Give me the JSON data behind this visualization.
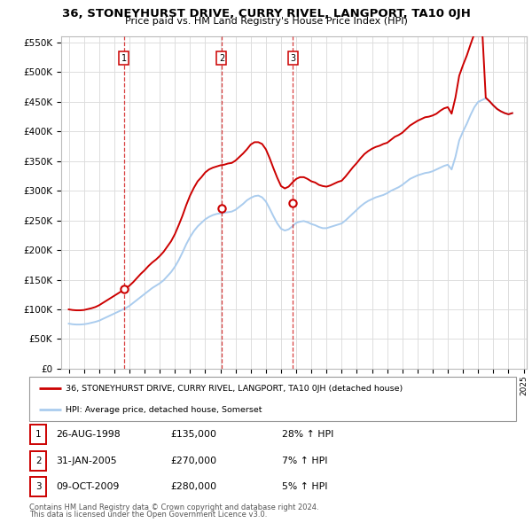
{
  "title": "36, STONEYHURST DRIVE, CURRY RIVEL, LANGPORT, TA10 0JH",
  "subtitle": "Price paid vs. HM Land Registry's House Price Index (HPI)",
  "legend_line1": "36, STONEYHURST DRIVE, CURRY RIVEL, LANGPORT, TA10 0JH (detached house)",
  "legend_line2": "HPI: Average price, detached house, Somerset",
  "footer1": "Contains HM Land Registry data © Crown copyright and database right 2024.",
  "footer2": "This data is licensed under the Open Government Licence v3.0.",
  "transactions": [
    {
      "num": 1,
      "date": "26-AUG-1998",
      "price": 135000,
      "hpi_pct": "28% ↑ HPI",
      "year": 1998.65
    },
    {
      "num": 2,
      "date": "31-JAN-2005",
      "price": 270000,
      "hpi_pct": "7% ↑ HPI",
      "year": 2005.08
    },
    {
      "num": 3,
      "date": "09-OCT-2009",
      "price": 280000,
      "hpi_pct": "5% ↑ HPI",
      "year": 2009.77
    }
  ],
  "hpi_color": "#aaccee",
  "price_color": "#cc0000",
  "ylim": [
    0,
    560000
  ],
  "yticks": [
    0,
    50000,
    100000,
    150000,
    200000,
    250000,
    300000,
    350000,
    400000,
    450000,
    500000,
    550000
  ],
  "background_color": "#ffffff",
  "grid_color": "#dddddd",
  "hpi_data_years": [
    1995.0,
    1995.25,
    1995.5,
    1995.75,
    1996.0,
    1996.25,
    1996.5,
    1996.75,
    1997.0,
    1997.25,
    1997.5,
    1997.75,
    1998.0,
    1998.25,
    1998.5,
    1998.75,
    1999.0,
    1999.25,
    1999.5,
    1999.75,
    2000.0,
    2000.25,
    2000.5,
    2000.75,
    2001.0,
    2001.25,
    2001.5,
    2001.75,
    2002.0,
    2002.25,
    2002.5,
    2002.75,
    2003.0,
    2003.25,
    2003.5,
    2003.75,
    2004.0,
    2004.25,
    2004.5,
    2004.75,
    2005.0,
    2005.25,
    2005.5,
    2005.75,
    2006.0,
    2006.25,
    2006.5,
    2006.75,
    2007.0,
    2007.25,
    2007.5,
    2007.75,
    2008.0,
    2008.25,
    2008.5,
    2008.75,
    2009.0,
    2009.25,
    2009.5,
    2009.75,
    2010.0,
    2010.25,
    2010.5,
    2010.75,
    2011.0,
    2011.25,
    2011.5,
    2011.75,
    2012.0,
    2012.25,
    2012.5,
    2012.75,
    2013.0,
    2013.25,
    2013.5,
    2013.75,
    2014.0,
    2014.25,
    2014.5,
    2014.75,
    2015.0,
    2015.25,
    2015.5,
    2015.75,
    2016.0,
    2016.25,
    2016.5,
    2016.75,
    2017.0,
    2017.25,
    2017.5,
    2017.75,
    2018.0,
    2018.25,
    2018.5,
    2018.75,
    2019.0,
    2019.25,
    2019.5,
    2019.75,
    2020.0,
    2020.25,
    2020.5,
    2020.75,
    2021.0,
    2021.25,
    2021.5,
    2021.75,
    2022.0,
    2022.25,
    2022.5,
    2022.75,
    2023.0,
    2023.25,
    2023.5,
    2023.75,
    2024.0,
    2024.25
  ],
  "hpi_data_values": [
    76000,
    75000,
    74500,
    74500,
    75000,
    76000,
    77500,
    79000,
    81000,
    84000,
    87000,
    90000,
    93000,
    96000,
    99000,
    102000,
    106000,
    111000,
    116000,
    121000,
    126000,
    131000,
    136000,
    140000,
    144000,
    149000,
    156000,
    163000,
    172000,
    183000,
    196000,
    210000,
    222000,
    232000,
    240000,
    246000,
    252000,
    256000,
    259000,
    261000,
    262000,
    263000,
    264000,
    265000,
    268000,
    273000,
    278000,
    284000,
    288000,
    291000,
    292000,
    289000,
    282000,
    270000,
    257000,
    245000,
    236000,
    233000,
    235000,
    240000,
    246000,
    248000,
    249000,
    247000,
    244000,
    242000,
    239000,
    237000,
    237000,
    239000,
    241000,
    243000,
    245000,
    250000,
    256000,
    262000,
    268000,
    274000,
    279000,
    283000,
    286000,
    289000,
    291000,
    293000,
    296000,
    300000,
    303000,
    306000,
    310000,
    315000,
    320000,
    323000,
    326000,
    328000,
    330000,
    331000,
    333000,
    336000,
    339000,
    342000,
    344000,
    336000,
    357000,
    385000,
    400000,
    413000,
    428000,
    441000,
    450000,
    453000,
    456000,
    451000,
    444000,
    438000,
    434000,
    431000,
    429000,
    431000
  ],
  "price_data_years": [
    1995.0,
    1995.25,
    1995.5,
    1995.75,
    1996.0,
    1996.25,
    1996.5,
    1996.75,
    1997.0,
    1997.25,
    1997.5,
    1997.75,
    1998.0,
    1998.25,
    1998.5,
    1998.75,
    1999.0,
    1999.25,
    1999.5,
    1999.75,
    2000.0,
    2000.25,
    2000.5,
    2000.75,
    2001.0,
    2001.25,
    2001.5,
    2001.75,
    2002.0,
    2002.25,
    2002.5,
    2002.75,
    2003.0,
    2003.25,
    2003.5,
    2003.75,
    2004.0,
    2004.25,
    2004.5,
    2004.75,
    2005.0,
    2005.25,
    2005.5,
    2005.75,
    2006.0,
    2006.25,
    2006.5,
    2006.75,
    2007.0,
    2007.25,
    2007.5,
    2007.75,
    2008.0,
    2008.25,
    2008.5,
    2008.75,
    2009.0,
    2009.25,
    2009.5,
    2009.75,
    2010.0,
    2010.25,
    2010.5,
    2010.75,
    2011.0,
    2011.25,
    2011.5,
    2011.75,
    2012.0,
    2012.25,
    2012.5,
    2012.75,
    2013.0,
    2013.25,
    2013.5,
    2013.75,
    2014.0,
    2014.25,
    2014.5,
    2014.75,
    2015.0,
    2015.25,
    2015.5,
    2015.75,
    2016.0,
    2016.25,
    2016.5,
    2016.75,
    2017.0,
    2017.25,
    2017.5,
    2017.75,
    2018.0,
    2018.25,
    2018.5,
    2018.75,
    2019.0,
    2019.25,
    2019.5,
    2019.75,
    2020.0,
    2020.25,
    2020.5,
    2020.75,
    2021.0,
    2021.25,
    2021.5,
    2021.75,
    2022.0,
    2022.25,
    2022.5,
    2022.75,
    2023.0,
    2023.25,
    2023.5,
    2023.75,
    2024.0,
    2024.25
  ],
  "price_data_values": [
    100000,
    99000,
    98500,
    98500,
    99000,
    100500,
    102000,
    104000,
    107000,
    111000,
    115000,
    119000,
    123000,
    127000,
    131000,
    135000,
    140000,
    146000,
    153000,
    160000,
    166000,
    173000,
    179000,
    184000,
    190000,
    197000,
    206000,
    215000,
    227000,
    242000,
    258000,
    276000,
    292000,
    305000,
    316000,
    323000,
    331000,
    336000,
    339000,
    341000,
    343000,
    344000,
    346000,
    347000,
    351000,
    357000,
    363000,
    370000,
    378000,
    382000,
    382000,
    379000,
    370000,
    355000,
    338000,
    322000,
    308000,
    304000,
    307000,
    314000,
    320000,
    323000,
    323000,
    320000,
    316000,
    314000,
    310000,
    308000,
    307000,
    309000,
    312000,
    315000,
    317000,
    324000,
    332000,
    340000,
    347000,
    355000,
    362000,
    367000,
    371000,
    374000,
    376000,
    379000,
    381000,
    386000,
    391000,
    394000,
    398000,
    404000,
    410000,
    414000,
    418000,
    421000,
    424000,
    425000,
    427000,
    430000,
    435000,
    439000,
    441000,
    430000,
    457000,
    494000,
    512000,
    528000,
    547000,
    565000,
    577000,
    580000,
    457000,
    451000,
    444000,
    438000,
    434000,
    431000,
    429000,
    431000
  ]
}
